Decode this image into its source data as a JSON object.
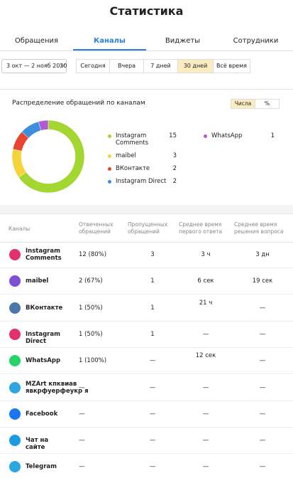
{
  "header": {
    "title": "Статистика"
  },
  "tabs": [
    "Обращения",
    "Каналы",
    "Виджеты",
    "Сотрудники"
  ],
  "active_tab": 1,
  "filters": {
    "date_range": "3 окт — 2 нояб 2020",
    "periods": [
      "Сегодня",
      "Вчера",
      "7 дней",
      "30 дней",
      "Всё время"
    ],
    "active_period": 3
  },
  "chart": {
    "type": "donut",
    "title": "Распределение обращений по каналам",
    "toggle": [
      "Числа",
      "%"
    ],
    "series": [
      {
        "name": "Instagram Comments",
        "value": 15,
        "color": "#a3d630"
      },
      {
        "name": "maibel",
        "value": 3,
        "color": "#f5d33a"
      },
      {
        "name": "ВКонтакте",
        "value": 2,
        "color": "#e8442e"
      },
      {
        "name": "Instagram Direct",
        "value": 2,
        "color": "#3b8fdc"
      },
      {
        "name": "WhatsApp",
        "value": 1,
        "color": "#b05bd1"
      }
    ]
  },
  "table": {
    "columns": [
      "Каналы",
      "Отвеченных обращений",
      "Пропущенных обращений",
      "Среднее время первого ответа",
      "Среднее время решения вопроса"
    ],
    "rows": [
      {
        "channel": "Instagram Comments",
        "color": "#e1306c",
        "answered": "12 (80%)",
        "missed": "3",
        "first": "3 ч",
        "resolve": "3 дн"
      },
      {
        "channel": "maibel",
        "color": "#7b4fd6",
        "answered": "2 (67%)",
        "missed": "1",
        "first": "6 сек",
        "resolve": "19 сек"
      },
      {
        "channel": "ВКонтакте",
        "color": "#4a76a8",
        "answered": "1 (50%)",
        "missed": "1",
        "first": "21 ч",
        "resolve": "—"
      },
      {
        "channel": "Instagram Direct",
        "color": "#e1306c",
        "answered": "1 (50%)",
        "missed": "1",
        "first": "—",
        "resolve": "—"
      },
      {
        "channel": "WhatsApp",
        "color": "#25d366",
        "answered": "1 (100%)",
        "missed": "—",
        "first": "12 сек",
        "resolve": "—"
      },
      {
        "channel": "MZArt кпквиав явкрфуерфеукр я",
        "color": "#2ca5e0",
        "answered": "—",
        "missed": "—",
        "first": "—",
        "resolve": "—"
      },
      {
        "channel": "Facebook",
        "color": "#1877f2",
        "answered": "—",
        "missed": "—",
        "first": "—",
        "resolve": "—"
      },
      {
        "channel": "Чат на сайте",
        "color": "#1a9be6",
        "answered": "—",
        "missed": "—",
        "first": "—",
        "resolve": "—"
      },
      {
        "channel": "Telegram",
        "color": "#2ca5e0",
        "answered": "—",
        "missed": "—",
        "first": "—",
        "resolve": "—"
      }
    ]
  }
}
